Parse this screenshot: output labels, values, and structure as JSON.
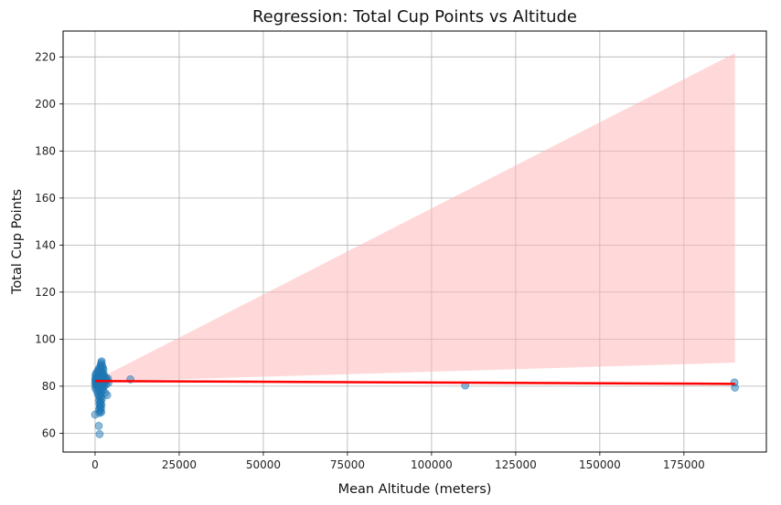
{
  "chart_data": {
    "type": "scatter",
    "title": "Regression: Total Cup Points vs Altitude",
    "xlabel": "Mean Altitude (meters)",
    "ylabel": "Total Cup Points",
    "xlim": [
      -9500,
      199500
    ],
    "ylim": [
      52,
      231
    ],
    "xticks": [
      0,
      25000,
      50000,
      75000,
      100000,
      125000,
      150000,
      175000
    ],
    "yticks": [
      60,
      80,
      100,
      120,
      140,
      160,
      180,
      200,
      220
    ],
    "grid": true,
    "legend": "none",
    "colors": {
      "points": "#1f77b4",
      "regression_line": "#ff0000",
      "confidence_band": "#ffb3b3"
    },
    "regression": {
      "line": [
        [
          0,
          82.2
        ],
        [
          190164,
          81.0
        ]
      ],
      "band_upper": [
        [
          0,
          82.4
        ],
        [
          190164,
          221.6
        ]
      ],
      "band_lower": [
        [
          0,
          81.9
        ],
        [
          190164,
          90.0
        ]
      ]
    },
    "points": [
      [
        1950,
        90.6
      ],
      [
        1850,
        89.9
      ],
      [
        1700,
        89.2
      ],
      [
        2100,
        88.8
      ],
      [
        1600,
        88.3
      ],
      [
        2300,
        87.9
      ],
      [
        1200,
        87.6
      ],
      [
        1800,
        87.3
      ],
      [
        2500,
        87.0
      ],
      [
        900,
        86.8
      ],
      [
        1400,
        86.5
      ],
      [
        2000,
        86.3
      ],
      [
        700,
        86.1
      ],
      [
        1650,
        85.9
      ],
      [
        2200,
        85.7
      ],
      [
        300,
        85.5
      ],
      [
        1100,
        85.4
      ],
      [
        1900,
        85.2
      ],
      [
        2600,
        85.0
      ],
      [
        500,
        84.9
      ],
      [
        1300,
        84.8
      ],
      [
        1750,
        84.6
      ],
      [
        2400,
        84.5
      ],
      [
        100,
        84.4
      ],
      [
        850,
        84.3
      ],
      [
        1550,
        84.2
      ],
      [
        2050,
        84.1
      ],
      [
        2800,
        84.0
      ],
      [
        1450,
        83.9
      ],
      [
        650,
        83.8
      ],
      [
        1950,
        83.7
      ],
      [
        3200,
        83.6
      ],
      [
        250,
        83.5
      ],
      [
        1150,
        83.5
      ],
      [
        1850,
        83.4
      ],
      [
        2350,
        83.3
      ],
      [
        3800,
        83.2
      ],
      [
        750,
        83.2
      ],
      [
        1600,
        83.1
      ],
      [
        2150,
        83.0
      ],
      [
        50,
        82.9
      ],
      [
        1000,
        82.9
      ],
      [
        1700,
        82.8
      ],
      [
        2700,
        82.7
      ],
      [
        400,
        82.7
      ],
      [
        1350,
        82.6
      ],
      [
        1900,
        82.5
      ],
      [
        3500,
        82.5
      ],
      [
        600,
        82.4
      ],
      [
        1500,
        82.3
      ],
      [
        2250,
        82.3
      ],
      [
        150,
        82.2
      ],
      [
        1200,
        82.1
      ],
      [
        1800,
        82.1
      ],
      [
        2900,
        82.0
      ],
      [
        800,
        81.9
      ],
      [
        1650,
        81.9
      ],
      [
        2450,
        81.8
      ],
      [
        350,
        81.7
      ],
      [
        1100,
        81.7
      ],
      [
        2000,
        81.6
      ],
      [
        4000,
        81.5
      ],
      [
        550,
        81.5
      ],
      [
        1400,
        81.4
      ],
      [
        2100,
        81.3
      ],
      [
        0,
        81.2
      ],
      [
        950,
        81.2
      ],
      [
        1750,
        81.1
      ],
      [
        2550,
        81.0
      ],
      [
        450,
        80.9
      ],
      [
        1300,
        80.8
      ],
      [
        1950,
        80.8
      ],
      [
        3300,
        80.7
      ],
      [
        700,
        80.6
      ],
      [
        1550,
        80.5
      ],
      [
        2300,
        80.4
      ],
      [
        200,
        80.3
      ],
      [
        1050,
        80.2
      ],
      [
        1850,
        80.1
      ],
      [
        2650,
        80.0
      ],
      [
        600,
        79.8
      ],
      [
        1450,
        79.6
      ],
      [
        2050,
        79.4
      ],
      [
        100,
        79.2
      ],
      [
        900,
        79.0
      ],
      [
        1700,
        78.7
      ],
      [
        2400,
        78.4
      ],
      [
        500,
        78.1
      ],
      [
        1250,
        77.8
      ],
      [
        1900,
        77.5
      ],
      [
        3000,
        77.1
      ],
      [
        800,
        76.8
      ],
      [
        1600,
        76.4
      ],
      [
        3600,
        76.2
      ],
      [
        1100,
        75.9
      ],
      [
        1800,
        75.5
      ],
      [
        1400,
        75.0
      ],
      [
        2000,
        74.5
      ],
      [
        1200,
        74.0
      ],
      [
        1700,
        73.5
      ],
      [
        1500,
        73.0
      ],
      [
        1300,
        72.5
      ],
      [
        1900,
        72.0
      ],
      [
        1600,
        71.5
      ],
      [
        1400,
        71.0
      ],
      [
        1750,
        70.5
      ],
      [
        1200,
        70.0
      ],
      [
        1550,
        69.5
      ],
      [
        1850,
        69.0
      ],
      [
        1300,
        68.6
      ],
      [
        0,
        67.9
      ],
      [
        1100,
        63.1
      ],
      [
        1350,
        59.6
      ],
      [
        10500,
        82.9
      ],
      [
        110000,
        80.3
      ],
      [
        190000,
        81.6
      ],
      [
        190164,
        79.4
      ]
    ]
  }
}
